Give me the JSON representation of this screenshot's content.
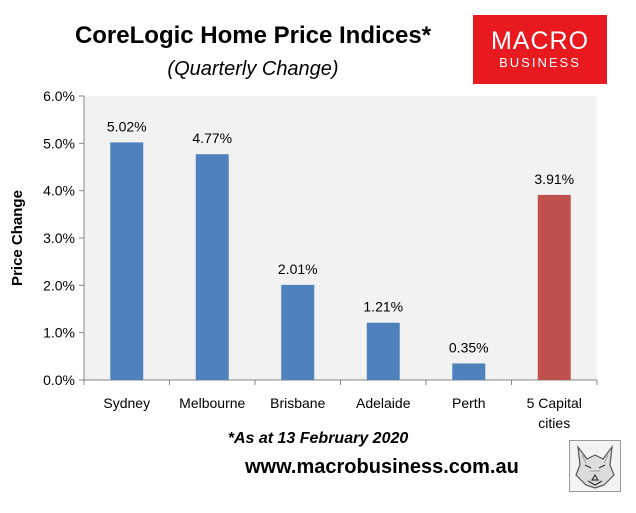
{
  "header": {
    "title": "CoreLogic Home Price Indices*",
    "subtitle": "(Quarterly Change)"
  },
  "logo": {
    "line1": "MACRO",
    "line2": "BUSINESS",
    "bg_color": "#e8191f"
  },
  "footer": {
    "footnote": "*As at 13 February 2020",
    "url": "www.macrobusiness.com.au",
    "wolf_icon": "wolf-sketch-icon"
  },
  "chart_data": {
    "type": "bar",
    "categories": [
      [
        "Sydney"
      ],
      [
        "Melbourne"
      ],
      [
        "Brisbane"
      ],
      [
        "Adelaide"
      ],
      [
        "Perth"
      ],
      [
        "5 Capital",
        "cities"
      ]
    ],
    "values": [
      5.02,
      4.77,
      2.01,
      1.21,
      0.35,
      3.91
    ],
    "data_labels": [
      "5.02%",
      "4.77%",
      "2.01%",
      "1.21%",
      "0.35%",
      "3.91%"
    ],
    "bar_colors": [
      "#4f81bd",
      "#4f81bd",
      "#4f81bd",
      "#4f81bd",
      "#4f81bd",
      "#c0504d"
    ],
    "ylabel": "Price Change",
    "ylim": [
      0,
      6
    ],
    "yticks": [
      0,
      1,
      2,
      3,
      4,
      5,
      6
    ],
    "ytick_labels": [
      "0.0%",
      "1.0%",
      "2.0%",
      "3.0%",
      "4.0%",
      "5.0%",
      "6.0%"
    ],
    "plot_background": "#f2f2f2",
    "grid": false,
    "legend": "none"
  }
}
